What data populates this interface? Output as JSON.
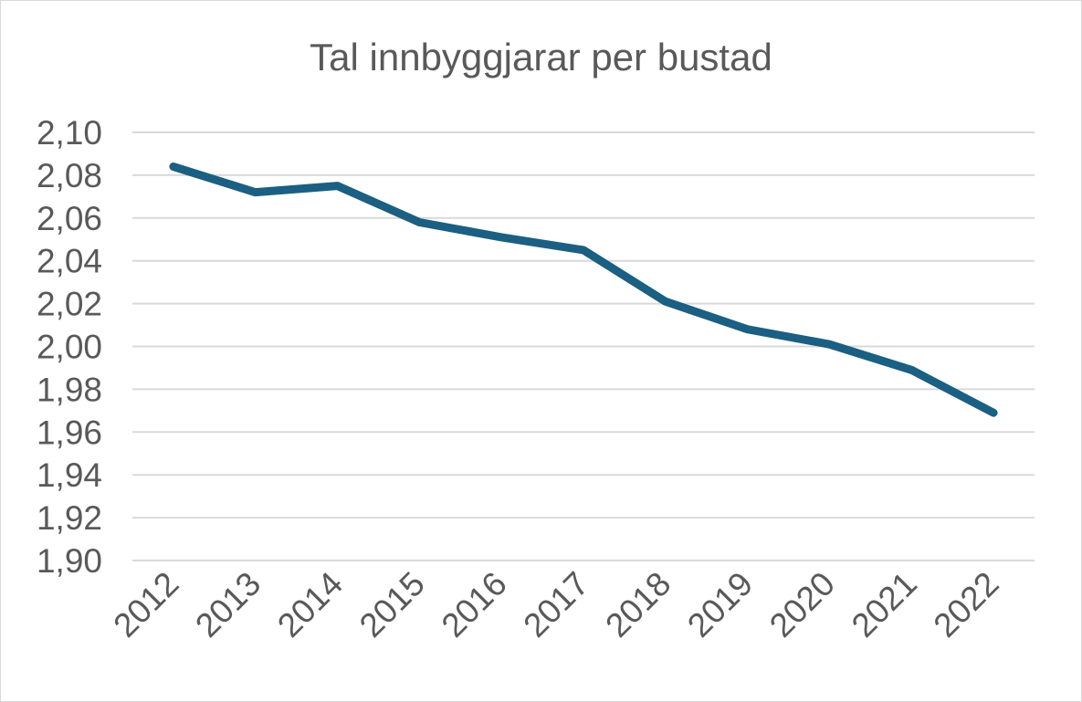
{
  "chart_data": {
    "type": "line",
    "title": "Tal innbyggjarar per bustad",
    "xlabel": "",
    "ylabel": "",
    "categories": [
      "2012",
      "2013",
      "2014",
      "2015",
      "2016",
      "2017",
      "2018",
      "2019",
      "2020",
      "2021",
      "2022"
    ],
    "series": [
      {
        "values": [
          2.084,
          2.072,
          2.075,
          2.058,
          2.051,
          2.045,
          2.021,
          2.008,
          2.001,
          1.989,
          1.969
        ],
        "color": "#1b5f82"
      }
    ],
    "ylim": [
      1.9,
      2.1
    ],
    "yticks": [
      "1,90",
      "1,92",
      "1,94",
      "1,96",
      "1,98",
      "2,00",
      "2,02",
      "2,04",
      "2,06",
      "2,08",
      "2,10"
    ],
    "grid": true,
    "legend": "none"
  }
}
